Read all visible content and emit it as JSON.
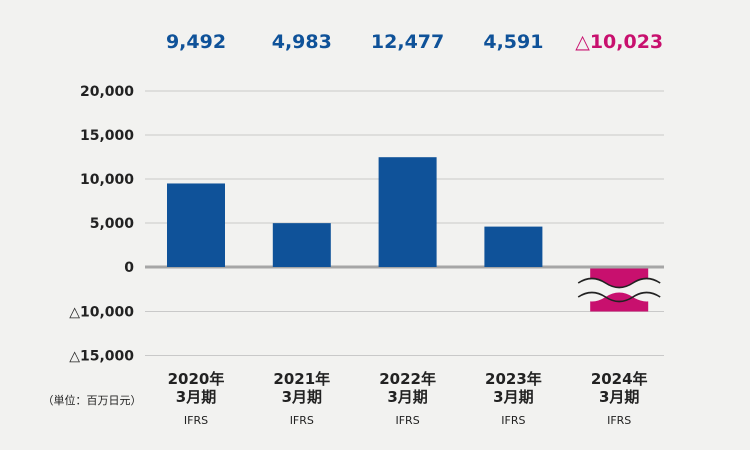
{
  "chart_data": {
    "type": "bar",
    "categories": [
      [
        "2020年",
        "3月期",
        "IFRS"
      ],
      [
        "2021年",
        "3月期",
        "IFRS"
      ],
      [
        "2022年",
        "3月期",
        "IFRS"
      ],
      [
        "2023年",
        "3月期",
        "IFRS"
      ],
      [
        "2024年",
        "3月期",
        "IFRS"
      ]
    ],
    "values": [
      9492,
      4983,
      12477,
      4591,
      -10023
    ],
    "data_labels": [
      "9,492",
      "4,983",
      "12,477",
      "4,591",
      "△10,023"
    ],
    "y_ticks": [
      {
        "value": 20000,
        "label": "20,000"
      },
      {
        "value": 15000,
        "label": "15,000"
      },
      {
        "value": 10000,
        "label": "10,000"
      },
      {
        "value": 5000,
        "label": "5,000"
      },
      {
        "value": 0,
        "label": "0"
      },
      {
        "value": -10000,
        "label": "△10,000"
      },
      {
        "value": -15000,
        "label": "△15,000"
      }
    ],
    "unit_label": "（単位：百万日元）",
    "axis_break": {
      "below_zero": true,
      "note": "negative axis compressed; 2024 bar shown with wavy break"
    },
    "colors": {
      "positive": "#0f5299",
      "negative": "#c8106e",
      "gridline": "#c9c9c9",
      "zero_line": "#a6a6a6",
      "text": "#222222",
      "background": "#f2f2f0"
    },
    "grid": true,
    "legend": "none"
  }
}
